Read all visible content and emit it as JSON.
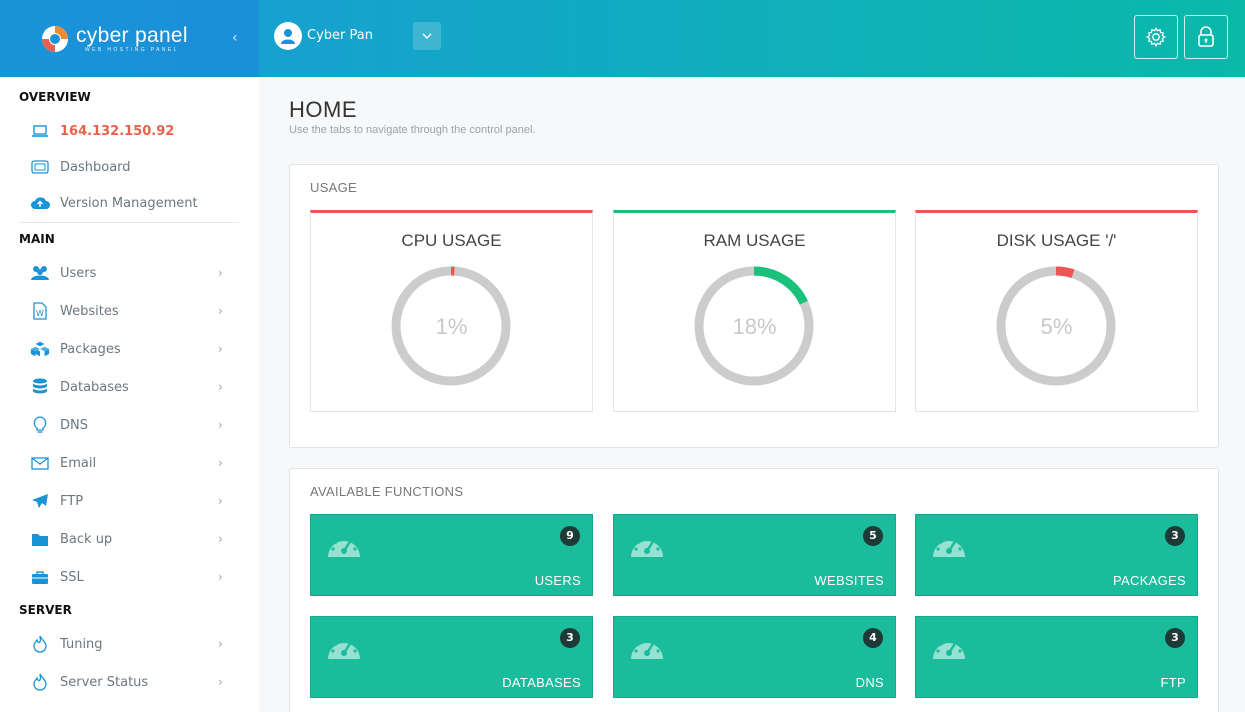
{
  "brand": {
    "name": "cyber panel",
    "tagline": "WEB HOSTING PANEL",
    "primary_color": "#1a94d9",
    "accent_color": "#1abc9c"
  },
  "header": {
    "collapse_icon": "chevron-left-icon",
    "user_name": "Cyber Pan",
    "dropdown_icon": "chevron-down-icon",
    "settings_icon": "gear-icon",
    "lock_icon": "lock-icon"
  },
  "sidebar": {
    "overview_title": "OVERVIEW",
    "overview_items": [
      {
        "label": "164.132.150.92",
        "icon": "laptop-icon"
      },
      {
        "label": "Dashboard",
        "icon": "dashboard-icon"
      },
      {
        "label": "Version Management",
        "icon": "cloud-upload-icon"
      }
    ],
    "main_title": "MAIN",
    "main_items": [
      {
        "label": "Users",
        "icon": "users-icon"
      },
      {
        "label": "Websites",
        "icon": "wordpress-file-icon"
      },
      {
        "label": "Packages",
        "icon": "cubes-icon"
      },
      {
        "label": "Databases",
        "icon": "database-icon"
      },
      {
        "label": "DNS",
        "icon": "lightbulb-icon"
      },
      {
        "label": "Email",
        "icon": "envelope-icon"
      },
      {
        "label": "FTP",
        "icon": "paper-plane-icon"
      },
      {
        "label": "Back up",
        "icon": "folder-icon"
      },
      {
        "label": "SSL",
        "icon": "briefcase-icon"
      }
    ],
    "server_title": "SERVER",
    "server_items": [
      {
        "label": "Tuning",
        "icon": "flame-icon"
      },
      {
        "label": "Server Status",
        "icon": "flame-icon"
      }
    ]
  },
  "main": {
    "title": "HOME",
    "description": "Use the tabs to navigate through the control panel.",
    "usage": {
      "title": "USAGE",
      "cards": [
        {
          "label": "CPU USAGE",
          "value": "1%",
          "percent": 1,
          "color": "#f05454"
        },
        {
          "label": "RAM USAGE",
          "value": "18%",
          "percent": 18,
          "color": "#19c27a"
        },
        {
          "label": "DISK USAGE '/'",
          "value": "5%",
          "percent": 5,
          "color": "#f05454"
        }
      ]
    },
    "functions": {
      "title": "AVAILABLE FUNCTIONS",
      "cards": [
        {
          "label": "USERS",
          "count": "9"
        },
        {
          "label": "WEBSITES",
          "count": "5"
        },
        {
          "label": "PACKAGES",
          "count": "3"
        },
        {
          "label": "DATABASES",
          "count": "3"
        },
        {
          "label": "DNS",
          "count": "4"
        },
        {
          "label": "FTP",
          "count": "3"
        }
      ]
    }
  }
}
